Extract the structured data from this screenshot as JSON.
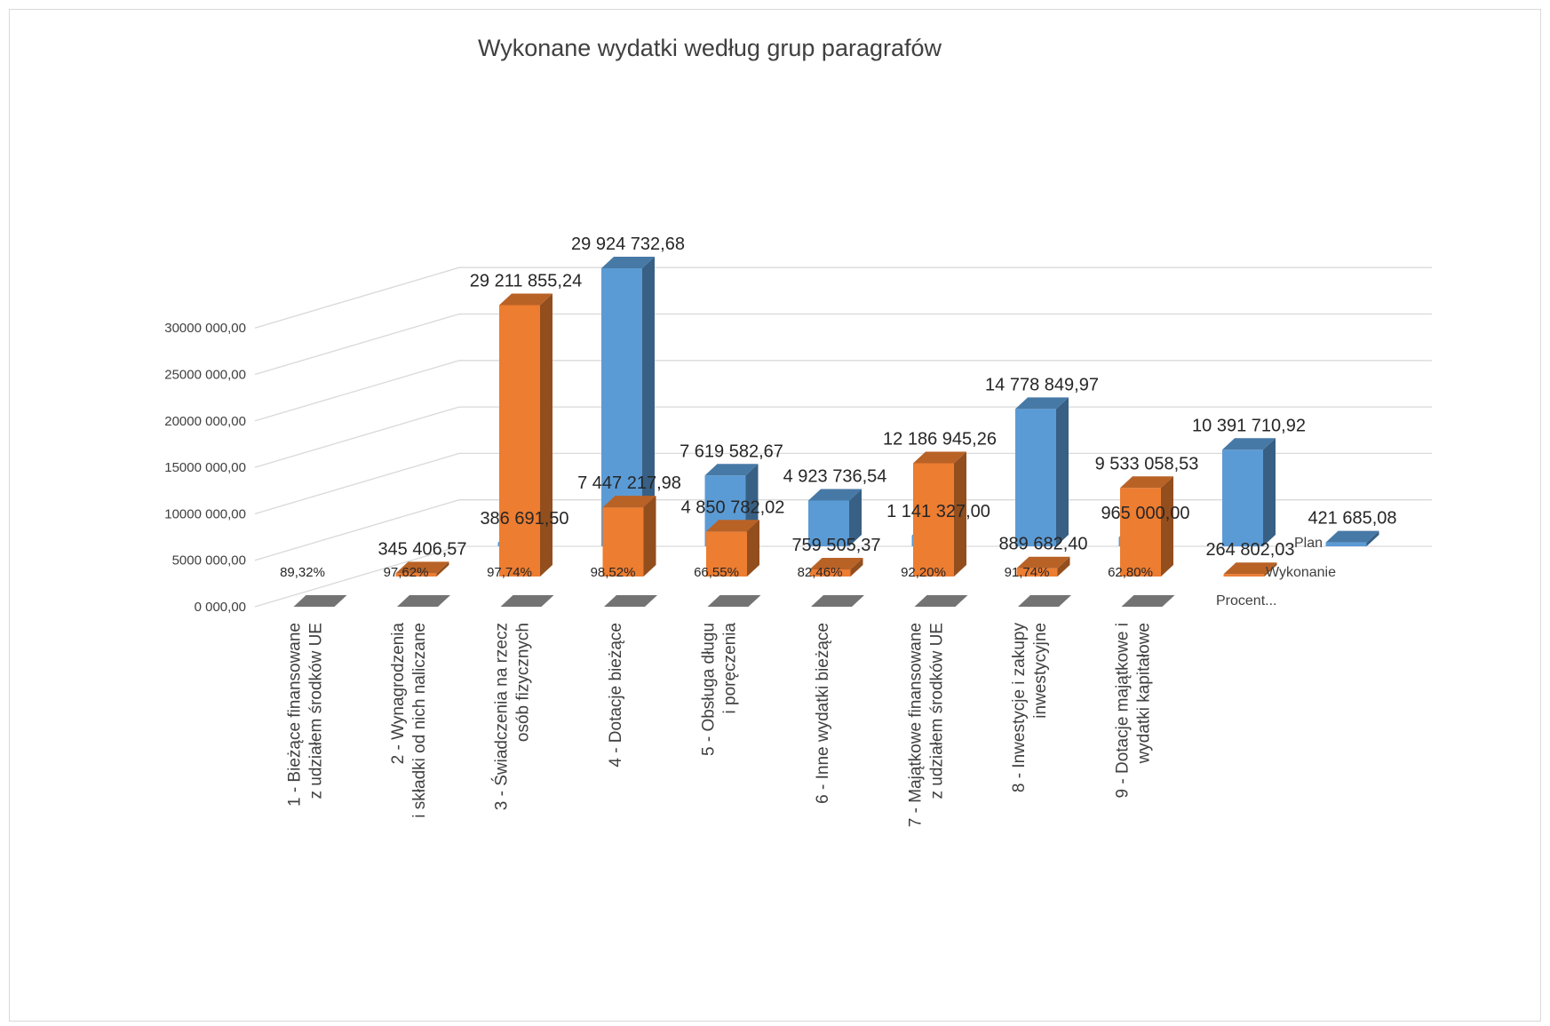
{
  "chart_data": {
    "type": "bar",
    "title": "Wykonane wydatki według grup paragrafów",
    "ylim": [
      0,
      30000000
    ],
    "ytick_values": [
      0,
      5000000,
      10000000,
      15000000,
      20000000,
      25000000,
      30000000
    ],
    "ytick_labels": [
      "0 000,00",
      "5000 000,00",
      "10000 000,00",
      "15000 000,00",
      "20000 000,00",
      "25000 000,00",
      "30000 000,00"
    ],
    "grid": true,
    "categories": [
      "1 - Bieżące finansowane z udziałem środków UE",
      "2 - Wynagrodzenia i składki od nich naliczane",
      "3 - Świadczenia na rzecz osób fizycznych",
      "4 - Dotacje bieżące",
      "5 - Obsługa długu i poręczenia",
      "6 - Inne wydatki bieżące",
      "7 - Majątkowe finansowane z udziałem środków UE",
      "8 - Inwestycje i zakupy inwestycyjne",
      "9 - Dotacje majątkowe i wydatki kapitałowe"
    ],
    "category_label_lines": [
      [
        "1 - Bieżące finansowane",
        "z udziałem środków UE"
      ],
      [
        "2 - Wynagrodzenia",
        "i składki od nich naliczane"
      ],
      [
        "3 - Świadczenia na rzecz",
        "osób fizycznych"
      ],
      [
        "4 - Dotacje bieżące"
      ],
      [
        "5 - Obsługa długu",
        "i poręczenia"
      ],
      [
        "6 - Inne wydatki bieżące"
      ],
      [
        "7 - Majątkowe finansowane",
        "z udziałem środków UE"
      ],
      [
        "8 - Inwestycje i zakupy",
        "inwestycyjne"
      ],
      [
        "9 - Dotacje majątkowe i",
        "wydatki kapitałowe"
      ]
    ],
    "series": [
      {
        "name": "Plan",
        "color": "#5b9bd5",
        "values": [
          386691.5,
          29924732.68,
          7619582.67,
          4923736.54,
          1141327.0,
          14778849.97,
          965000.0,
          10391710.92,
          421685.08
        ],
        "labels": [
          "386 691,50",
          "29 924 732,68",
          "7 619 582,67",
          "4 923 736,54",
          "1 141 327,00",
          "14 778 849,97",
          "965 000,00",
          "10 391 710,92",
          "421 685,08"
        ]
      },
      {
        "name": "Wykonanie",
        "color": "#ed7d31",
        "values": [
          345406.57,
          29211855.24,
          7447217.98,
          4850782.02,
          759505.37,
          12186945.26,
          889682.4,
          9533058.53,
          264802.03
        ],
        "labels": [
          "345 406,57",
          "29 211 855,24",
          "7 447 217,98",
          "4 850 782,02",
          "759 505,37",
          "12 186 945,26",
          "889 682,40",
          "9 533 058,53",
          "264 802,03"
        ]
      },
      {
        "name": "Procent...",
        "color": "#808080",
        "values": [
          89.32,
          97.62,
          97.74,
          98.52,
          66.55,
          82.46,
          92.2,
          91.74,
          62.8
        ],
        "labels": [
          "89,32%",
          "97,62%",
          "97,74%",
          "98,52%",
          "66,55%",
          "82,46%",
          "92,20%",
          "91,74%",
          "62,80%"
        ]
      }
    ]
  }
}
